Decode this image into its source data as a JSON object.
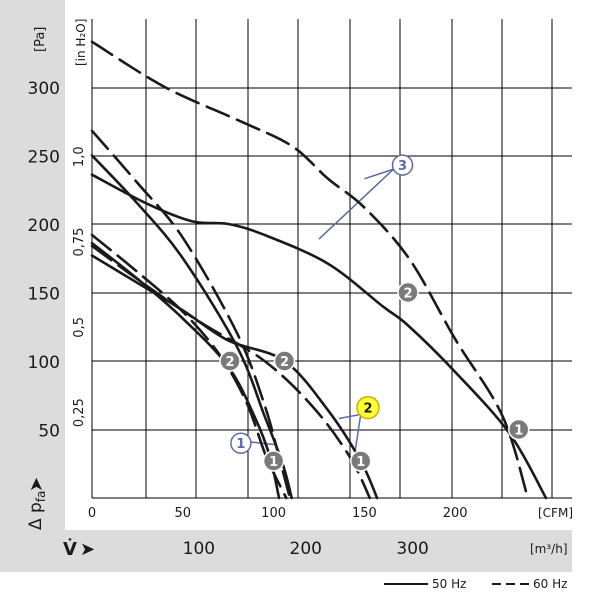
{
  "chart_data": {
    "type": "line",
    "title": "",
    "left_axis": {
      "unit_label": "[Pa]",
      "ticks": [
        "50",
        "100",
        "150",
        "200",
        "250",
        "300"
      ],
      "range": [
        0,
        350
      ]
    },
    "inner_axis": {
      "unit_label": "[in H₂O]",
      "ticks": [
        "0,25",
        "0,5",
        "0,75",
        "1,0"
      ]
    },
    "y_axis_label": "Δ p",
    "y_axis_label_sub": "fa",
    "y_axis_arrow": "➤",
    "x_axis_cfm": {
      "unit_label": "[CFM]",
      "ticks": [
        "0",
        "50",
        "100",
        "150",
        "200"
      ],
      "range": [
        0,
        260
      ]
    },
    "x_axis_m3h": {
      "unit_label": "[m³/h]",
      "ticks": [
        "100",
        "200",
        "300"
      ]
    },
    "x_axis_label": "V̇",
    "x_axis_arrow": "➤",
    "grid": true,
    "legend_position": "bottom-right",
    "legend": [
      {
        "label": "50 Hz",
        "style": "solid"
      },
      {
        "label": "60 Hz",
        "style": "dashed"
      }
    ],
    "series": [
      {
        "style": "solid",
        "points": [
          [
            0,
            186
          ],
          [
            25,
            160
          ],
          [
            50,
            131
          ],
          [
            75,
            96
          ],
          [
            90,
            58
          ],
          [
            98,
            30
          ],
          [
            103,
            0
          ]
        ]
      },
      {
        "style": "dashed",
        "points": [
          [
            0,
            192
          ],
          [
            25,
            165
          ],
          [
            50,
            136
          ],
          [
            70,
            105
          ],
          [
            85,
            70
          ],
          [
            96,
            30
          ],
          [
            107,
            0
          ]
        ]
      },
      {
        "style": "solid",
        "points": [
          [
            0,
            250
          ],
          [
            25,
            215
          ],
          [
            50,
            175
          ],
          [
            80,
            110
          ],
          [
            95,
            60
          ],
          [
            105,
            25
          ],
          [
            110,
            0
          ]
        ]
      },
      {
        "style": "dashed",
        "points": [
          [
            0,
            268
          ],
          [
            25,
            230
          ],
          [
            50,
            190
          ],
          [
            80,
            120
          ],
          [
            95,
            68
          ],
          [
            103,
            30
          ],
          [
            109,
            0
          ]
        ]
      },
      {
        "style": "solid",
        "points": [
          [
            0,
            177
          ],
          [
            25,
            157
          ],
          [
            50,
            137
          ],
          [
            75,
            115
          ],
          [
            106,
            100
          ],
          [
            130,
            64
          ],
          [
            148,
            27
          ],
          [
            157,
            0
          ]
        ]
      },
      {
        "style": "dashed",
        "points": [
          [
            0,
            184
          ],
          [
            30,
            155
          ],
          [
            60,
            128
          ],
          [
            95,
            100
          ],
          [
            122,
            66
          ],
          [
            142,
            30
          ],
          [
            153,
            0
          ]
        ]
      },
      {
        "style": "solid",
        "points": [
          [
            0,
            236
          ],
          [
            30,
            215
          ],
          [
            55,
            202
          ],
          [
            75,
            200
          ],
          [
            95,
            192
          ],
          [
            130,
            171
          ],
          [
            160,
            140
          ],
          [
            174,
            126
          ],
          [
            200,
            92
          ],
          [
            230,
            47
          ],
          [
            250,
            0
          ]
        ]
      },
      {
        "style": "dashed",
        "points": [
          [
            0,
            333
          ],
          [
            40,
            300
          ],
          [
            80,
            276
          ],
          [
            110,
            257
          ],
          [
            130,
            233
          ],
          [
            150,
            212
          ],
          [
            175,
            174
          ],
          [
            200,
            116
          ],
          [
            226,
            60
          ],
          [
            240,
            0
          ]
        ]
      }
    ],
    "markers": [
      {
        "label": "1",
        "style": "filled",
        "x": 100,
        "y": 27
      },
      {
        "label": "1",
        "style": "filled",
        "x": 148,
        "y": 27
      },
      {
        "label": "1",
        "style": "filled",
        "x": 235,
        "y": 50
      },
      {
        "label": "2",
        "style": "filled",
        "x": 76,
        "y": 100
      },
      {
        "label": "2",
        "style": "filled",
        "x": 106,
        "y": 100
      },
      {
        "label": "2",
        "style": "filled",
        "x": 174,
        "y": 150
      },
      {
        "label": "2",
        "style": "highlighted",
        "x": 152,
        "y": 66
      },
      {
        "label": "1",
        "style": "outline",
        "x": 82,
        "y": 40
      },
      {
        "label": "3",
        "style": "outline",
        "x": 171,
        "y": 243
      }
    ],
    "callout_lines": [
      {
        "from": [
          86,
          41
        ],
        "to": [
          101,
          39
        ]
      },
      {
        "from": [
          148,
          61
        ],
        "to": [
          136,
          58
        ]
      },
      {
        "from": [
          148,
          61
        ],
        "to": [
          145,
          35
        ]
      },
      {
        "from": [
          166,
          240
        ],
        "to": [
          150,
          233
        ]
      },
      {
        "from": [
          166,
          240
        ],
        "to": [
          125,
          189
        ]
      }
    ]
  }
}
